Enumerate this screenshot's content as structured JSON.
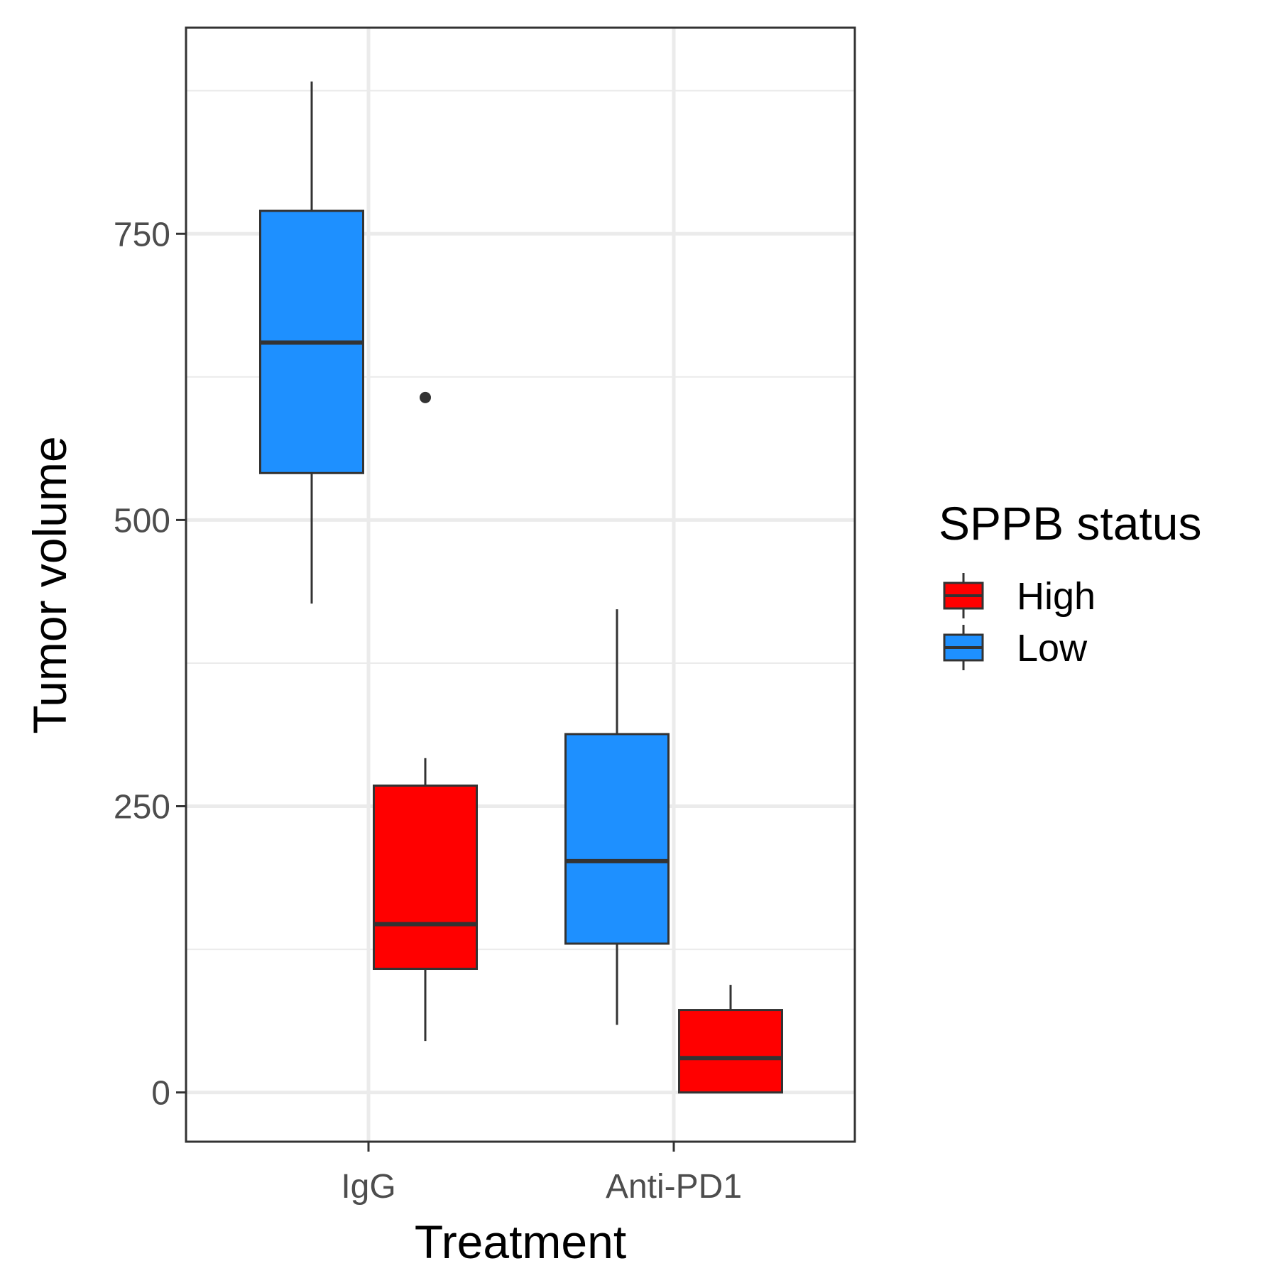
{
  "chart_data": {
    "type": "box",
    "xlabel": "Treatment",
    "ylabel": "Tumor volume",
    "categories": [
      "IgG",
      "Anti-PD1"
    ],
    "ylim": [
      -43,
      930
    ],
    "yticks": [
      0,
      250,
      500,
      750
    ],
    "y_minor_ticks": [
      125,
      375,
      625,
      875
    ],
    "grid": true,
    "legend": {
      "title": "SPPB status",
      "placement": "right",
      "entries": [
        {
          "name": "High",
          "color": "#ff0000"
        },
        {
          "name": "Low",
          "color": "#1e90ff"
        }
      ]
    },
    "series": [
      {
        "name": "Low",
        "color": "#1e90ff",
        "boxes": [
          {
            "category": "IgG",
            "whisker_low": 427,
            "q1": 541,
            "median": 655,
            "q3": 770,
            "whisker_high": 883,
            "outliers": []
          },
          {
            "category": "Anti-PD1",
            "whisker_low": 59,
            "q1": 130,
            "median": 202,
            "q3": 313,
            "whisker_high": 422,
            "outliers": []
          }
        ]
      },
      {
        "name": "High",
        "color": "#ff0000",
        "boxes": [
          {
            "category": "IgG",
            "whisker_low": 45,
            "q1": 108,
            "median": 147,
            "q3": 268,
            "whisker_high": 292,
            "outliers": [
              607
            ]
          },
          {
            "category": "Anti-PD1",
            "whisker_low": 0,
            "q1": 0,
            "median": 30,
            "q3": 72,
            "whisker_high": 94,
            "outliers": []
          }
        ]
      }
    ]
  }
}
